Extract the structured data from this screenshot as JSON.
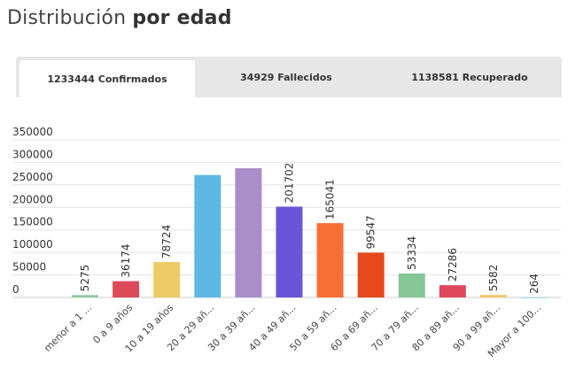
{
  "heading": {
    "light": "Distribución",
    "bold": "por edad"
  },
  "tabs": [
    {
      "label": "1233444 Confirmados",
      "active": true
    },
    {
      "label": "34929 Fallecidos",
      "active": false
    },
    {
      "label": "1138581 Recuperado",
      "active": false
    }
  ],
  "chart_data": {
    "type": "bar",
    "title": "",
    "xlabel": "",
    "ylabel": "",
    "ylim": [
      0,
      350000
    ],
    "yticks": [
      "350000",
      "300000",
      "250000",
      "200000",
      "150000",
      "100000",
      "50000",
      "0"
    ],
    "grid": true,
    "categories": [
      "menor a 1 ...",
      "0 a 9 años",
      "10 a 19 años",
      "20 a 29 añ...",
      "30 a 39 añ...",
      "40 a 49 añ...",
      "50 a 59 añ...",
      "60 a 69 añ...",
      "70 a 79 añ...",
      "80 a 89 añ...",
      "90 a 99 añ...",
      "Mayor a 100..."
    ],
    "values": [
      5275,
      36174,
      78724,
      272000,
      287000,
      201702,
      165041,
      99547,
      53334,
      27286,
      5582,
      264
    ],
    "data_labels": [
      "5275",
      "36174",
      "78724",
      "",
      "",
      "201702",
      "165041",
      "99547",
      "53334",
      "27286",
      "5582",
      "264"
    ],
    "colors": [
      "#8dc9a1",
      "#dc4a5a",
      "#efcb66",
      "#5db8e6",
      "#a98ec9",
      "#6a55d8",
      "#f86f35",
      "#e6491e",
      "#85c796",
      "#e0475d",
      "#f2c86a",
      "#5cb5e3"
    ]
  }
}
